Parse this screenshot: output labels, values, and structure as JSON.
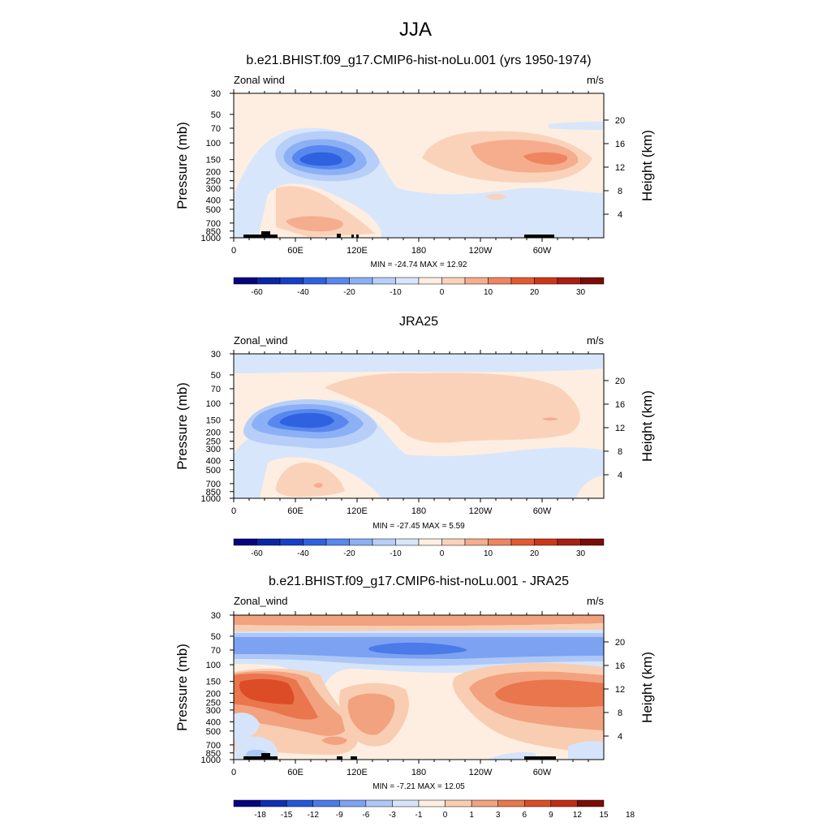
{
  "title": "JJA",
  "panel_labels": {
    "left": [
      "Zonal wind",
      "Zonal_wind",
      "Zonal_wind"
    ],
    "right": [
      "m/s",
      "m/s",
      "m/s"
    ]
  },
  "axis_titles": {
    "left": "Pressure (mb)",
    "right": "Height (km)"
  },
  "colorbar_labels": [
    [
      "-60",
      "-40",
      "-20",
      "-10",
      "0",
      "10",
      "20",
      "30"
    ],
    [
      "-60",
      "-40",
      "-20",
      "-10",
      "0",
      "10",
      "20",
      "30"
    ],
    [
      "-18",
      "-15",
      "-12",
      "-9",
      "-6",
      "-3",
      "-1",
      "0",
      "1",
      "3",
      "6",
      "9",
      "12",
      "15",
      "18"
    ]
  ],
  "colors": {
    "full_palette": [
      "#06057f",
      "#0a26a6",
      "#1740c8",
      "#2f62e0",
      "#5887ee",
      "#8bb0f5",
      "#b7cff8",
      "#d8e6fb",
      "#fdeee1",
      "#fad2ba",
      "#f5ad8d",
      "#ee8560",
      "#e25a33",
      "#cc3719",
      "#a91f12",
      "#7c0c07"
    ],
    "diff_palette": [
      "#06057f",
      "#0f2fb4",
      "#2356d8",
      "#4a7be8",
      "#7da2f2",
      "#adc8f7",
      "#d5e4fb",
      "#fdeee1",
      "#f9cdb1",
      "#f2a27e",
      "#ea764e",
      "#dc4d27",
      "#c42c14",
      "#7c0c07"
    ]
  },
  "chart_data": [
    {
      "type": "heatmap",
      "title": "b.e21.BHIST.f09_g17.CMIP6-hist-noLu.001 (yrs 1950-1974)",
      "variable": "Zonal wind",
      "units": "m/s",
      "xlabel": "",
      "ylabel": "Pressure (mb)",
      "y2label": "Height (km)",
      "x_ticks": [
        "0",
        "60E",
        "120E",
        "180",
        "120W",
        "60W"
      ],
      "y_ticks": [
        "30",
        "50",
        "70",
        "100",
        "150",
        "200",
        "250",
        "300",
        "400",
        "500",
        "700",
        "850",
        "1000"
      ],
      "y2_ticks": [
        "4",
        "8",
        "12",
        "16",
        "20"
      ],
      "y_scale": "log",
      "stats": "MIN = -24.74  MAX =  12.92",
      "min": -24.74,
      "max": 12.92
    },
    {
      "type": "heatmap",
      "title": "JRA25",
      "variable": "Zonal_wind",
      "units": "m/s",
      "xlabel": "",
      "ylabel": "Pressure (mb)",
      "y2label": "Height (km)",
      "x_ticks": [
        "0",
        "60E",
        "120E",
        "180",
        "120W",
        "60W"
      ],
      "y_ticks": [
        "30",
        "50",
        "70",
        "100",
        "150",
        "200",
        "250",
        "300",
        "400",
        "500",
        "700",
        "850",
        "1000"
      ],
      "y2_ticks": [
        "4",
        "8",
        "12",
        "16",
        "20"
      ],
      "y_scale": "log",
      "stats": "MIN = -27.45  MAX =   5.59",
      "min": -27.45,
      "max": 5.59
    },
    {
      "type": "heatmap",
      "title": "b.e21.BHIST.f09_g17.CMIP6-hist-noLu.001 - JRA25",
      "variable": "Zonal_wind",
      "units": "m/s",
      "xlabel": "",
      "ylabel": "Pressure (mb)",
      "y2label": "Height (km)",
      "x_ticks": [
        "0",
        "60E",
        "120E",
        "180",
        "120W",
        "60W"
      ],
      "y_ticks": [
        "30",
        "50",
        "70",
        "100",
        "150",
        "200",
        "250",
        "300",
        "400",
        "500",
        "700",
        "850",
        "1000"
      ],
      "y2_ticks": [
        "4",
        "8",
        "12",
        "16",
        "20"
      ],
      "y_scale": "log",
      "stats": "MIN = -7.21  MAX =  12.05",
      "min": -7.21,
      "max": 12.05
    }
  ]
}
